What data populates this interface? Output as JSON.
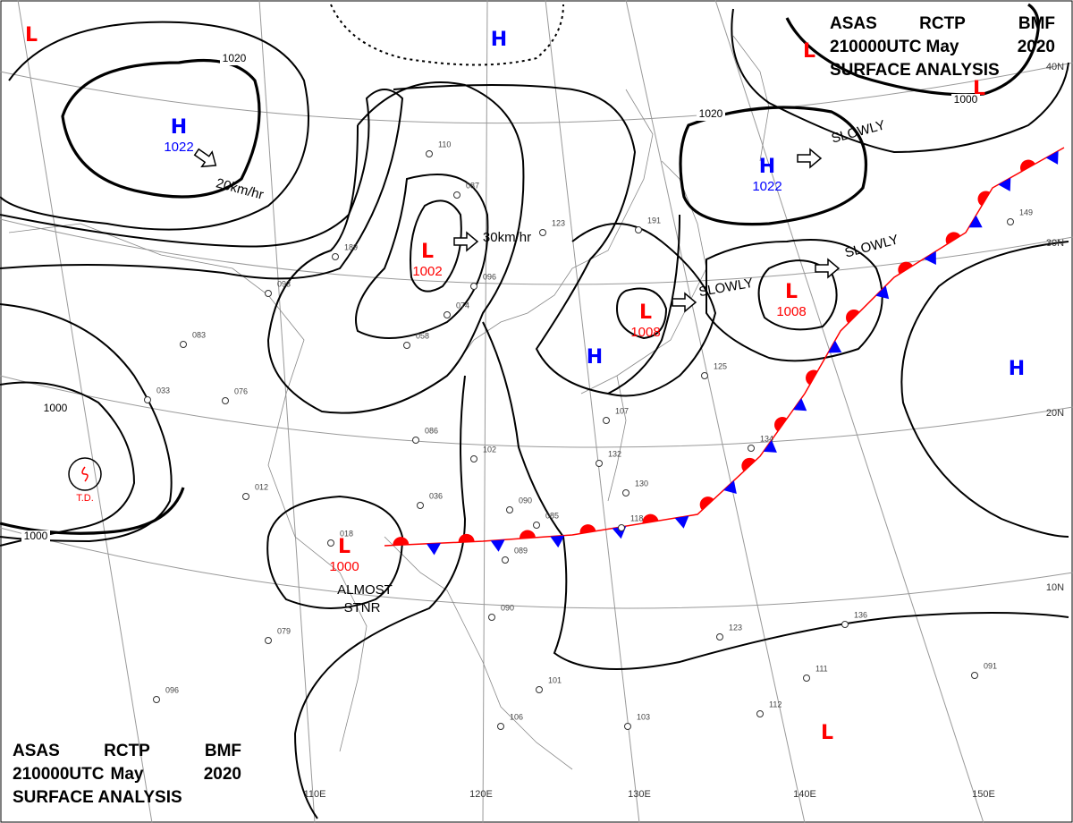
{
  "header": {
    "top": [
      [
        "ASAS",
        "RCTP",
        "BMF"
      ],
      [
        "210000UTC",
        "May",
        "2020"
      ],
      [
        "SURFACE ANALYSIS"
      ]
    ],
    "bottom": [
      [
        "ASAS",
        "RCTP",
        "BMF"
      ],
      [
        "210000UTC",
        "May",
        "2020"
      ],
      [
        "SURFACE ANALYSIS"
      ]
    ]
  },
  "systems": [
    {
      "symbol": "H",
      "pressure": 1022,
      "color": "#0000ff"
    },
    {
      "symbol": "L",
      "pressure": 1002,
      "color": "#ff0000"
    },
    {
      "symbol": "L",
      "pressure": 1008,
      "color": "#ff0000"
    },
    {
      "symbol": "H",
      "pressure": 1022,
      "color": "#0000ff"
    },
    {
      "symbol": "L",
      "pressure": 1008,
      "color": "#ff0000"
    },
    {
      "symbol": "L",
      "pressure": 1000,
      "color": "#ff0000"
    },
    {
      "symbol": "H",
      "color": "#0000ff"
    },
    {
      "symbol": "H",
      "color": "#0000ff"
    },
    {
      "symbol": "H",
      "color": "#0000ff"
    },
    {
      "symbol": "L",
      "color": "#ff0000"
    },
    {
      "symbol": "L",
      "color": "#ff0000"
    },
    {
      "symbol": "L",
      "color": "#ff0000"
    },
    {
      "symbol": "L",
      "color": "#ff0000"
    }
  ],
  "isobar_labels": [
    1020,
    1000,
    1000,
    1020,
    1000
  ],
  "motions": [
    "20km/hr",
    "30km/hr",
    "SLOWLY",
    "SLOWLY",
    "SLOWLY",
    "ALMOST",
    "STNR"
  ],
  "tropical_depression": "T.D.",
  "latitudes": [
    "40N",
    "30N",
    "20N",
    "10N"
  ],
  "longitudes": [
    "110E",
    "120E",
    "130E",
    "140E",
    "150E"
  ],
  "stations": [
    "110",
    "189",
    "087",
    "123",
    "191",
    "096",
    "074",
    "058",
    "076",
    "033",
    "086",
    "102",
    "090",
    "085",
    "118",
    "132",
    "130",
    "079",
    "096",
    "090",
    "106",
    "101",
    "103",
    "112",
    "111",
    "091",
    "123",
    "136",
    "149",
    "134",
    "125",
    "083",
    "012",
    "036",
    "018",
    "089",
    "107",
    "093"
  ]
}
